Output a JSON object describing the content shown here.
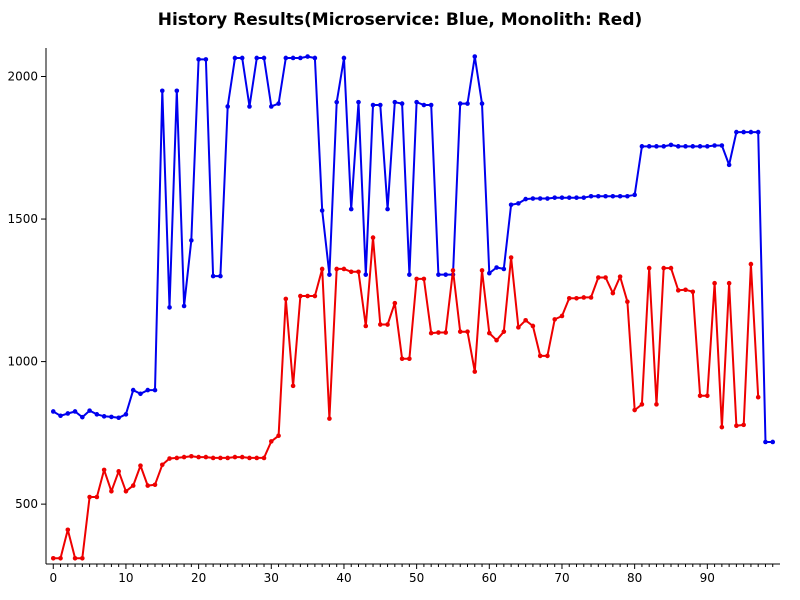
{
  "chart_data": {
    "type": "line",
    "title": "History Results(Microservice: Blue, Monolith: Red)",
    "xlabel": "",
    "ylabel": "",
    "xlim": [
      -1,
      100
    ],
    "ylim": [
      290,
      2100
    ],
    "xticks": [
      0,
      10,
      20,
      30,
      40,
      50,
      60,
      70,
      80,
      90
    ],
    "yticks": [
      500,
      1000,
      1500,
      2000
    ],
    "grid": false,
    "series": [
      {
        "color": "#0000ee",
        "x": [
          0,
          1,
          2,
          3,
          4,
          5,
          6,
          7,
          8,
          9,
          10,
          11,
          12,
          13,
          14,
          15,
          16,
          17,
          18,
          19,
          20,
          21,
          22,
          23,
          24,
          25,
          26,
          27,
          28,
          29,
          30,
          31,
          32,
          33,
          34,
          35,
          36,
          37,
          38,
          39,
          40,
          41,
          42,
          43,
          44,
          45,
          46,
          47,
          48,
          49,
          50,
          51,
          52,
          53,
          54,
          55,
          56,
          57,
          58,
          59,
          60,
          61,
          62,
          63,
          64,
          65,
          66,
          67,
          68,
          69,
          70,
          71,
          72,
          73,
          74,
          75,
          76,
          77,
          78,
          79,
          80,
          81,
          82,
          83,
          84,
          85,
          86,
          87,
          88,
          89,
          90,
          91,
          92,
          93,
          94,
          95,
          96,
          97,
          98,
          99
        ],
        "y": [
          825,
          810,
          818,
          825,
          805,
          828,
          815,
          808,
          806,
          803,
          815,
          900,
          887,
          900,
          900,
          1950,
          1190,
          1950,
          1195,
          1425,
          2060,
          2060,
          1300,
          1300,
          1895,
          2065,
          2065,
          1895,
          2065,
          2065,
          1895,
          1905,
          2065,
          2065,
          2065,
          2070,
          2065,
          1530,
          1305,
          1910,
          2065,
          1535,
          1910,
          1305,
          1900,
          1900,
          1535,
          1910,
          1905,
          1305,
          1910,
          1900,
          1900,
          1305,
          1305,
          1305,
          1905,
          1905,
          2070,
          1905,
          1310,
          1330,
          1325,
          1550,
          1555,
          1570,
          1572,
          1572,
          1572,
          1575,
          1575,
          1575,
          1575,
          1575,
          1580,
          1580,
          1580,
          1580,
          1580,
          1580,
          1585,
          1755,
          1755,
          1755,
          1755,
          1760,
          1755,
          1755,
          1755,
          1755,
          1755,
          1758,
          1758,
          1690,
          1805,
          1805,
          1805,
          1805,
          718,
          718
        ]
      },
      {
        "color": "#ee0000",
        "x": [
          0,
          1,
          2,
          3,
          4,
          5,
          6,
          7,
          8,
          9,
          10,
          11,
          12,
          13,
          14,
          15,
          16,
          17,
          18,
          19,
          20,
          21,
          22,
          23,
          24,
          25,
          26,
          27,
          28,
          29,
          30,
          31,
          32,
          33,
          34,
          35,
          36,
          37,
          38,
          39,
          40,
          41,
          42,
          43,
          44,
          45,
          46,
          47,
          48,
          49,
          50,
          51,
          52,
          53,
          54,
          55,
          56,
          57,
          58,
          59,
          60,
          61,
          62,
          63,
          64,
          65,
          66,
          67,
          68,
          69,
          70,
          71,
          72,
          73,
          74,
          75,
          76,
          77,
          78,
          79,
          80,
          81,
          82,
          83,
          84,
          85,
          86,
          87,
          88,
          89,
          90,
          91,
          92,
          93,
          94,
          95,
          96,
          97
        ],
        "y": [
          310,
          310,
          410,
          310,
          310,
          525,
          525,
          620,
          545,
          615,
          545,
          565,
          635,
          565,
          568,
          638,
          660,
          662,
          665,
          668,
          665,
          665,
          662,
          662,
          662,
          665,
          665,
          662,
          662,
          662,
          720,
          740,
          1220,
          915,
          1230,
          1230,
          1230,
          1325,
          800,
          1325,
          1325,
          1315,
          1315,
          1125,
          1435,
          1130,
          1130,
          1205,
          1010,
          1010,
          1290,
          1290,
          1100,
          1102,
          1102,
          1320,
          1105,
          1105,
          965,
          1320,
          1100,
          1075,
          1105,
          1365,
          1120,
          1145,
          1125,
          1020,
          1020,
          1148,
          1160,
          1222,
          1222,
          1225,
          1225,
          1295,
          1295,
          1240,
          1298,
          1210,
          830,
          850,
          1328,
          850,
          1328,
          1328,
          1250,
          1252,
          1245,
          880,
          880,
          1275,
          770,
          1275,
          775,
          778,
          1342,
          875
        ]
      }
    ]
  }
}
